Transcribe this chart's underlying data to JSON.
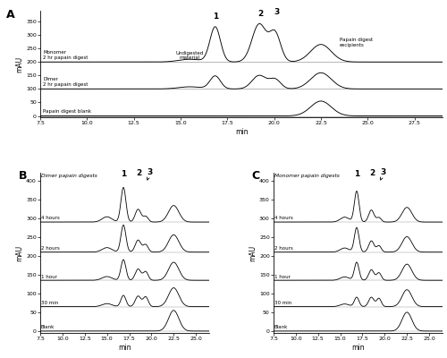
{
  "fig_width": 5.0,
  "fig_height": 4.0,
  "dpi": 100,
  "background": "#ffffff",
  "panel_A": {
    "label": "A",
    "xlabel": "min",
    "ylabel": "mAU",
    "xmin": 7.5,
    "xmax": 29.0,
    "ymin": -5,
    "ymax": 390,
    "yticks": [
      0,
      50,
      100,
      150,
      200,
      250,
      300,
      350
    ],
    "xticks": [
      7.5,
      10,
      12.5,
      15,
      17.5,
      20,
      22.5,
      25,
      27.5
    ],
    "offsets": [
      0,
      100,
      200
    ],
    "labels": [
      "Papain digest blank",
      "Dimer\n2 hr papain digest",
      "Monomer\n2 hr papain digest"
    ]
  },
  "panel_B": {
    "label": "B",
    "xlabel": "min",
    "ylabel": "mAU",
    "xmin": 7.5,
    "xmax": 26.5,
    "ymin": -5,
    "ymax": 420,
    "yticks": [
      0,
      50,
      100,
      150,
      200,
      250,
      300,
      350,
      400
    ],
    "xticks": [
      7.5,
      10,
      12.5,
      15,
      17.5,
      20,
      22.5,
      25
    ],
    "title_text": "Dimer papain digests",
    "time_labels": [
      "Blank",
      "30 min",
      "1 hour",
      "2 hours",
      "4 hours"
    ],
    "offsets": [
      0,
      65,
      135,
      210,
      290
    ]
  },
  "panel_C": {
    "label": "C",
    "xlabel": "min",
    "ylabel": "mAU",
    "xmin": 7.5,
    "xmax": 26.5,
    "ymin": -5,
    "ymax": 420,
    "yticks": [
      0,
      50,
      100,
      150,
      200,
      250,
      300,
      350,
      400
    ],
    "xticks": [
      7.5,
      10,
      12.5,
      15,
      17.5,
      20,
      22.5,
      25
    ],
    "title_text": "Monomer papain digests",
    "time_labels": [
      "Blank",
      "30 min",
      "1 hour",
      "2 hours",
      "4 hours"
    ],
    "offsets": [
      0,
      65,
      135,
      210,
      290
    ]
  }
}
